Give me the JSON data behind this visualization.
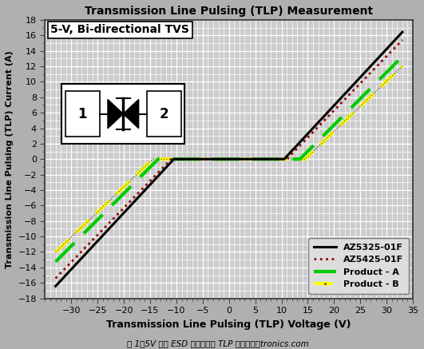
{
  "title": "Transmission Line Pulsing (TLP) Measurement",
  "xlabel": "Transmission Line Pulsing (TLP) Voltage (V)",
  "ylabel": "Transmission Line Pulsing (TLP) Current (A)",
  "xlim": [
    -35,
    35
  ],
  "ylim": [
    -18,
    18
  ],
  "xticks": [
    -30,
    -25,
    -20,
    -15,
    -10,
    -5,
    0,
    5,
    10,
    15,
    20,
    25,
    30,
    35
  ],
  "yticks": [
    -18,
    -16,
    -14,
    -12,
    -10,
    -8,
    -6,
    -4,
    -2,
    0,
    2,
    4,
    6,
    8,
    10,
    12,
    14,
    16,
    18
  ],
  "bg_color": "#cccccc",
  "grid_color": "#ffffff",
  "annotation_text": "5-V, Bi-directional TVS",
  "legend_labels": [
    "AZ5325-01F",
    "AZ5425-01F",
    "Product - A",
    "Product - B"
  ],
  "curves": {
    "az5325": {
      "vt": 10.5,
      "slope": 0.73,
      "color": "#000000",
      "lw": 2.2,
      "ls": "solid",
      "zorder": 8
    },
    "az5425": {
      "vt": 11.0,
      "slope": 0.7,
      "color": "#990000",
      "lw": 2.0,
      "ls": "dotted",
      "zorder": 7
    },
    "prodA": {
      "vt": 13.5,
      "slope": 0.68,
      "color": "#00cc00",
      "lw": 3.0,
      "ls": "dashed",
      "zorder": 6
    },
    "prodB": {
      "vt": 14.5,
      "slope": 0.65,
      "color": "#ffff00",
      "lw": 2.8,
      "ls": "dashdot",
      "zorder": 5
    }
  },
  "figsize": [
    5.31,
    4.37
  ],
  "dpi": 100,
  "fig_bg": "#b0b0b0",
  "caption": "图 1：5V双向ESD保护组件的TLP测试曲线。tronics.com"
}
